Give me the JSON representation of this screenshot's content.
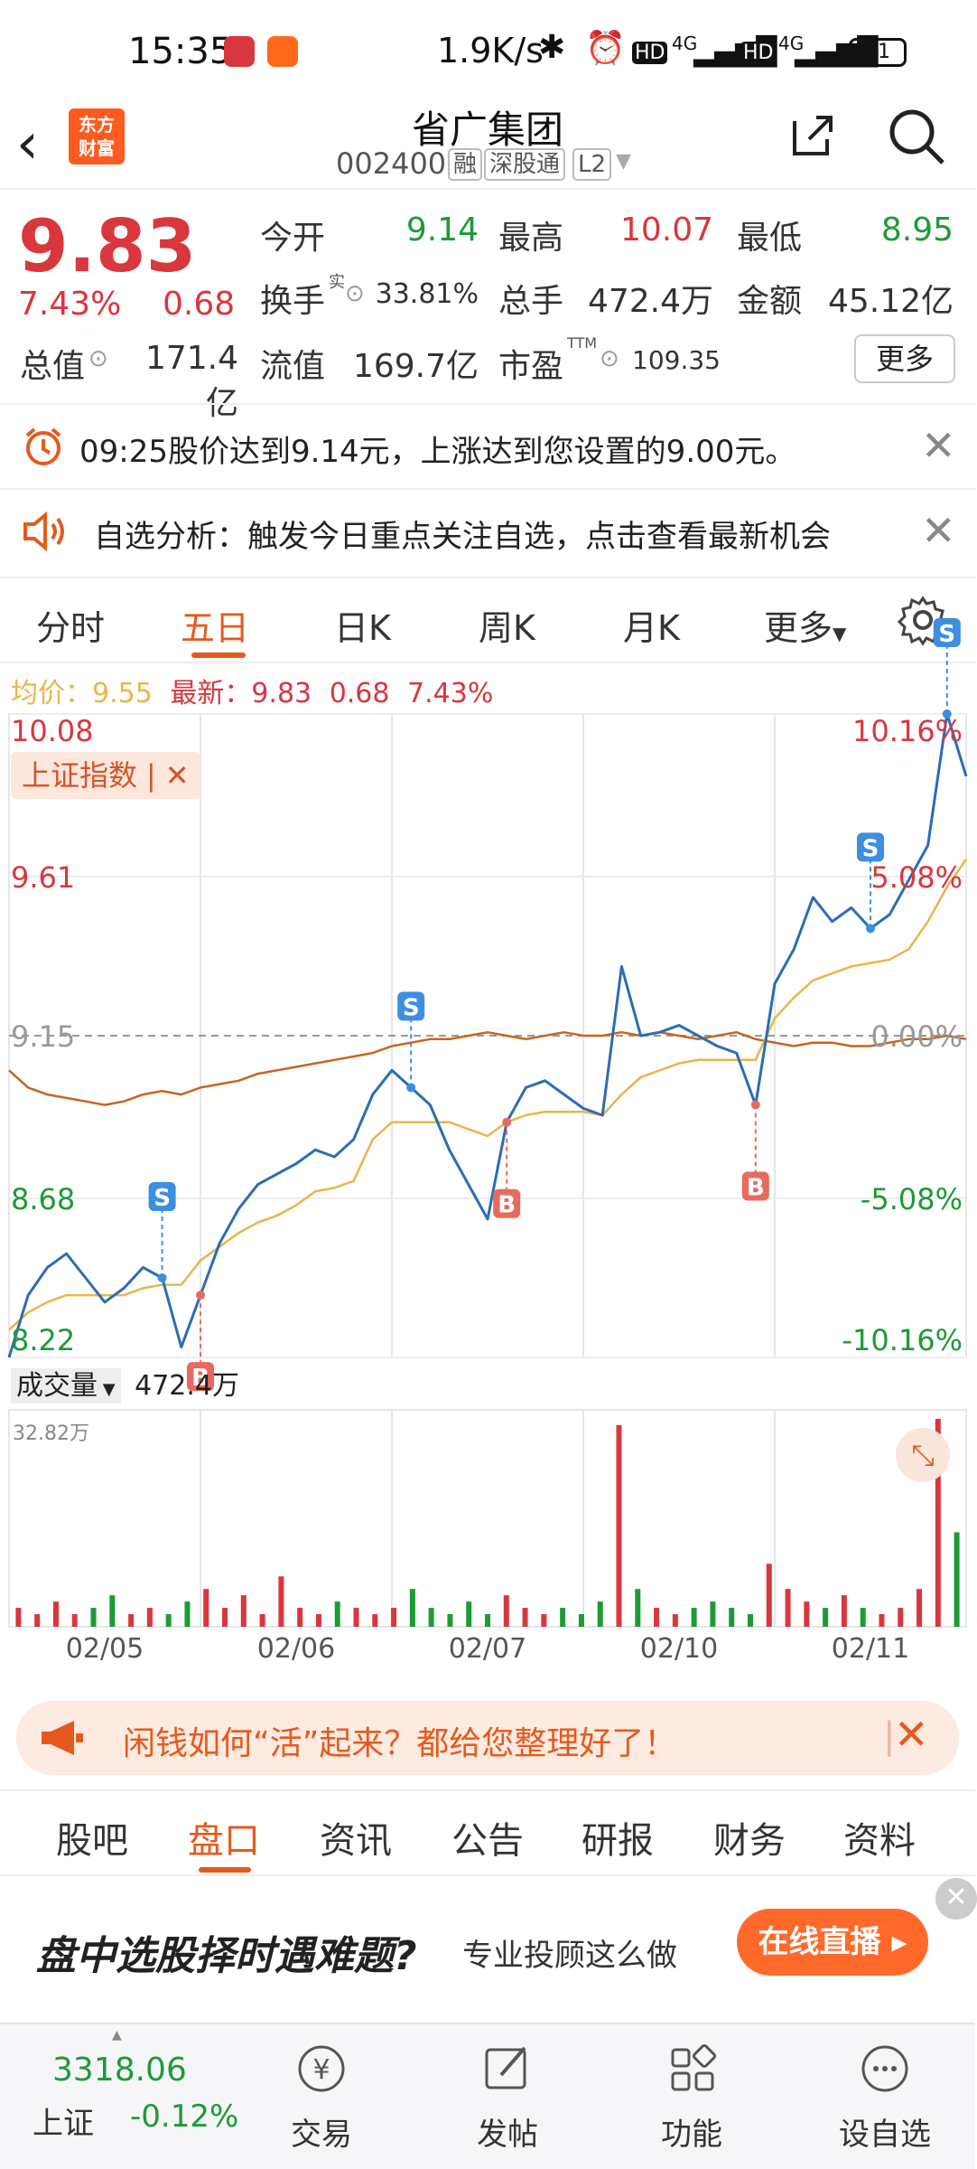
{
  "status_bar": {
    "time": "15:35",
    "net_speed": "1.9K/s",
    "signal_1": "4G",
    "signal_2": "4G",
    "hd_1": "HD",
    "hd_2": "HD",
    "battery": "71"
  },
  "header": {
    "stock_name": "省广集团",
    "stock_code": "002400",
    "tags": [
      "融",
      "深股通",
      "L2"
    ],
    "logo_line1": "东方",
    "logo_line2": "财富"
  },
  "quote": {
    "price": "9.83",
    "change_pct": "7.43%",
    "change": "0.68",
    "open_label": "今开",
    "open": "9.14",
    "high_label": "最高",
    "high": "10.07",
    "low_label": "最低",
    "low": "8.95",
    "turnover_rate_label": "换手",
    "turnover_rate_sup": "实",
    "turnover_rate": "33.81%",
    "volume_label": "总手",
    "volume": "472.4万",
    "amount_label": "金额",
    "amount": "45.12亿",
    "mktcap_label": "总值",
    "mktcap": "171.4亿",
    "float_label": "流值",
    "float_cap": "169.7亿",
    "pe_label": "市盈",
    "pe_sup": "TTM",
    "pe": "109.35",
    "more_label": "更多"
  },
  "notices": [
    {
      "text": "09:25股价达到9.14元，上涨达到您设置的9.00元。"
    },
    {
      "text": "自选分析：触发今日重点关注自选，点击查看最新机会"
    }
  ],
  "period_tabs": [
    "分时",
    "五日",
    "日K",
    "周K",
    "月K",
    "更多"
  ],
  "avg_info": {
    "avg_label": "均价：",
    "avg": "9.55",
    "latest_label": "最新：",
    "latest": "9.83",
    "chg": "0.68",
    "pct": "7.43%"
  },
  "chart_data": {
    "type": "line",
    "x": [
      "02/05",
      "02/06",
      "02/07",
      "02/10",
      "02/11"
    ],
    "ylim": [
      8.22,
      10.08
    ],
    "y_ticks_left": [
      "10.08",
      "9.61",
      "9.15",
      "8.68",
      "8.22"
    ],
    "y_ticks_right": [
      "10.16%",
      "5.08%",
      "0.00%",
      "-5.08%",
      "-10.16%"
    ],
    "overlay_label": "上证指数",
    "volume_label": "成交量",
    "volume_total": "472.4万",
    "volume_max": "32.82万",
    "price_series": [
      8.22,
      8.4,
      8.48,
      8.52,
      8.45,
      8.38,
      8.42,
      8.48,
      8.45,
      8.25,
      8.4,
      8.55,
      8.65,
      8.72,
      8.75,
      8.78,
      8.82,
      8.8,
      8.85,
      8.98,
      9.05,
      9.0,
      8.95,
      8.82,
      8.72,
      8.62,
      8.9,
      9.0,
      9.02,
      8.98,
      8.94,
      8.92,
      9.35,
      9.15,
      9.16,
      9.18,
      9.15,
      9.12,
      9.1,
      8.95,
      9.3,
      9.4,
      9.55,
      9.48,
      9.52,
      9.46,
      9.5,
      9.6,
      9.7,
      10.08,
      9.9
    ],
    "avg_series": [
      8.3,
      8.35,
      8.38,
      8.4,
      8.4,
      8.4,
      8.4,
      8.42,
      8.43,
      8.43,
      8.5,
      8.54,
      8.58,
      8.61,
      8.63,
      8.66,
      8.7,
      8.71,
      8.73,
      8.85,
      8.9,
      8.9,
      8.9,
      8.9,
      8.88,
      8.86,
      8.9,
      8.92,
      8.93,
      8.93,
      8.93,
      8.92,
      8.98,
      9.03,
      9.05,
      9.07,
      9.08,
      9.08,
      9.08,
      9.08,
      9.2,
      9.26,
      9.31,
      9.33,
      9.35,
      9.36,
      9.37,
      9.4,
      9.48,
      9.58,
      9.66
    ],
    "index_series": [
      9.05,
      9.0,
      8.98,
      8.97,
      8.96,
      8.95,
      8.96,
      8.98,
      8.99,
      8.98,
      9.0,
      9.01,
      9.02,
      9.04,
      9.05,
      9.06,
      9.07,
      9.08,
      9.09,
      9.1,
      9.12,
      9.13,
      9.14,
      9.14,
      9.15,
      9.16,
      9.15,
      9.14,
      9.15,
      9.16,
      9.15,
      9.15,
      9.16,
      9.15,
      9.16,
      9.15,
      9.14,
      9.15,
      9.16,
      9.14,
      9.13,
      9.12,
      9.13,
      9.13,
      9.12,
      9.12,
      9.13,
      9.14,
      9.14,
      9.15,
      9.14
    ],
    "signals": [
      {
        "type": "S",
        "i": 8
      },
      {
        "type": "B",
        "i": 10
      },
      {
        "type": "S",
        "i": 21
      },
      {
        "type": "B",
        "i": 26
      },
      {
        "type": "B",
        "i": 39
      },
      {
        "type": "S",
        "i": 45
      },
      {
        "type": "S",
        "i": 49
      }
    ],
    "volume_series": [
      3,
      2,
      4,
      2,
      3,
      5,
      2,
      3,
      2,
      4,
      6,
      3,
      5,
      2,
      8,
      3,
      2,
      4,
      3,
      2,
      3,
      6,
      3,
      2,
      4,
      2,
      5,
      3,
      2,
      3,
      2,
      4,
      32,
      6,
      3,
      2,
      3,
      4,
      3,
      2,
      10,
      6,
      4,
      3,
      5,
      3,
      2,
      3,
      6,
      33,
      15
    ]
  },
  "promo": {
    "text": "闲钱如何“活”起来？都给您整理好了！"
  },
  "bottom_tabs": [
    "股吧",
    "盘口",
    "资讯",
    "公告",
    "研报",
    "财务",
    "资料"
  ],
  "ad": {
    "headline": "盘中选股择时遇难题?",
    "sub": "专业投顾这么做",
    "button": "在线直播 ▸"
  },
  "bottom_nav": {
    "index_value": "3318.06",
    "index_name": "上证",
    "index_change": "-0.12%",
    "items": [
      "交易",
      "发帖",
      "功能",
      "设自选"
    ]
  },
  "colors": {
    "accent": "#e55a1c",
    "up": "#d9363e",
    "down": "#1c9b35",
    "price_line": "#2a6db5",
    "avg_line": "#e8b64a",
    "index_line": "#c8641e"
  }
}
